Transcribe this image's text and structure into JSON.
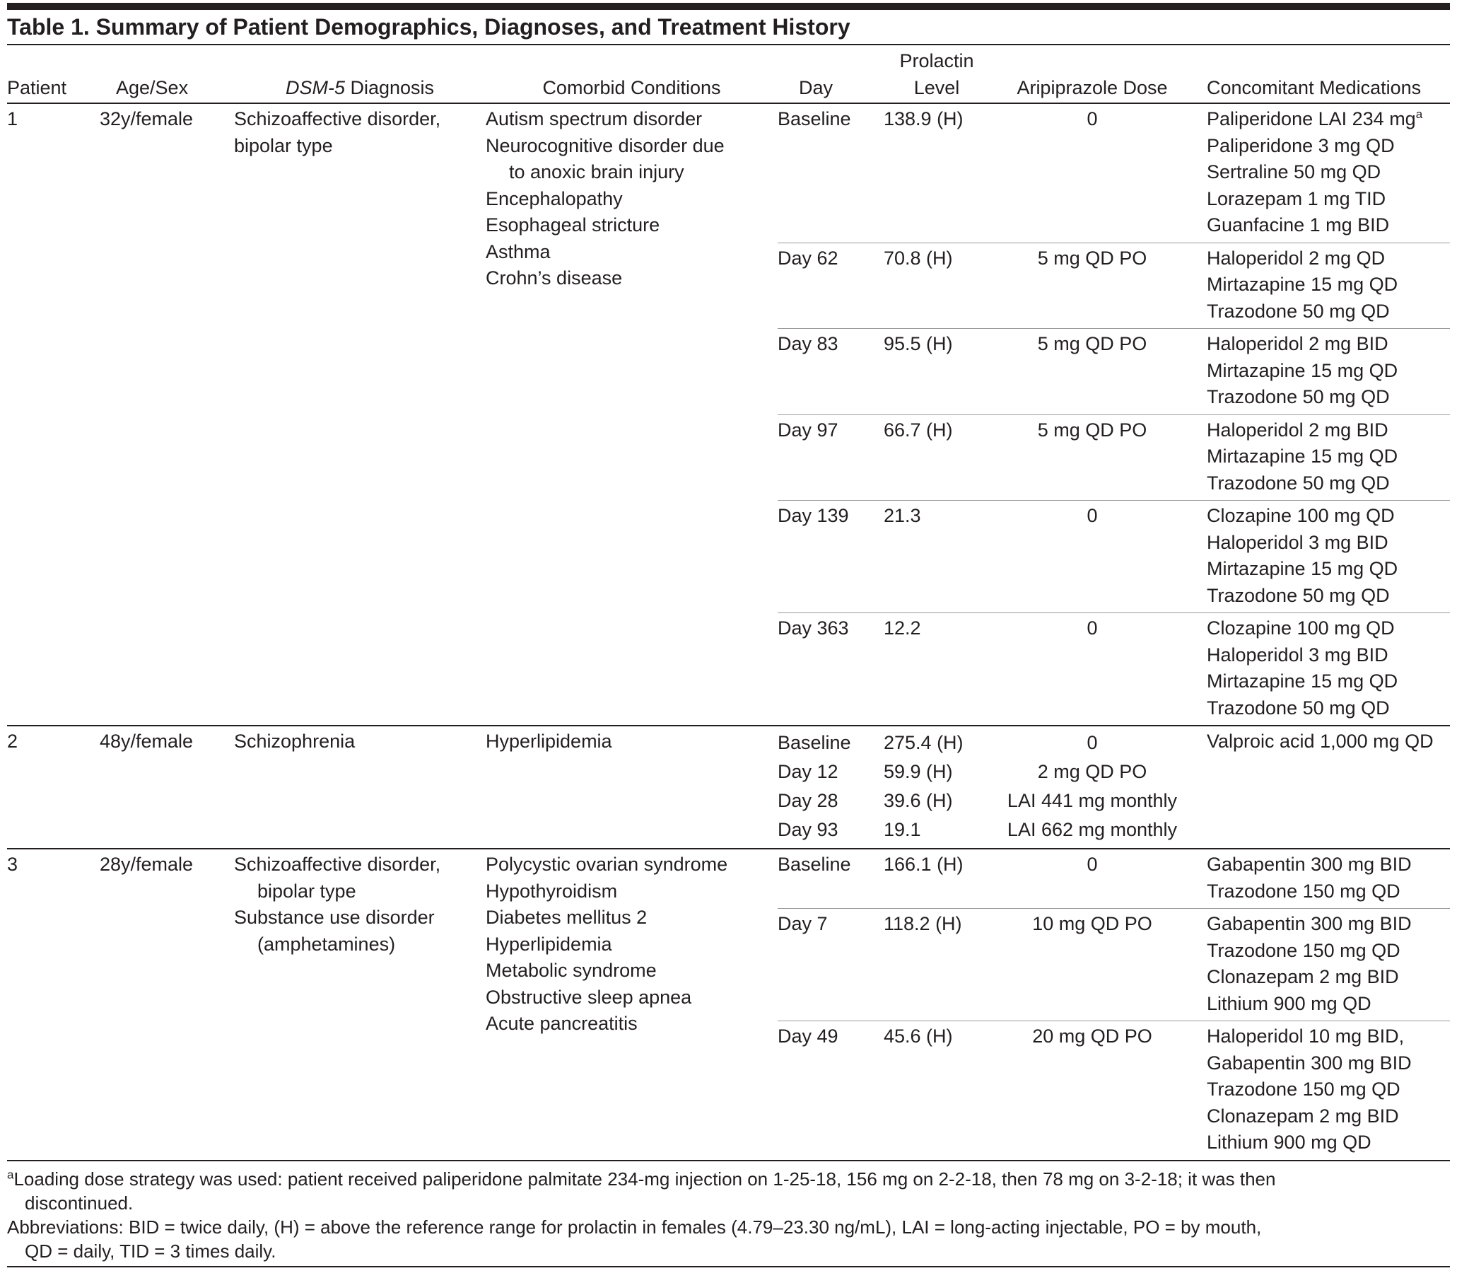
{
  "title": "Table 1. Summary of Patient Demographics, Diagnoses, and Treatment History",
  "columns": [
    "Patient",
    "Age/Sex",
    [
      "DSM-5",
      "Diagnosis"
    ],
    "Comorbid Conditions",
    "Day",
    [
      "Prolactin",
      "Level"
    ],
    "Aripiprazole Dose",
    "Concomitant Medications"
  ],
  "patients": [
    {
      "patient": "1",
      "age_sex": "32y/female",
      "diagnosis": [
        "Schizoaffective disorder,",
        "bipolar type"
      ],
      "comorbid": [
        "Autism spectrum disorder",
        [
          "Neurocognitive disorder due",
          "to anoxic brain injury"
        ],
        "Encephalopathy",
        "Esophageal stricture",
        "Asthma",
        "Crohn’s disease"
      ],
      "rows": [
        {
          "entries": [
            {
              "day": "Baseline",
              "prolactin": "138.9 (H)",
              "dose": "0"
            }
          ],
          "medications": [
            {
              "text": "Paliperidone LAI 234 mg",
              "sup": "a"
            },
            "Paliperidone 3 mg QD",
            "Sertraline 50 mg QD",
            "Lorazepam 1 mg TID",
            "Guanfacine 1 mg BID"
          ]
        },
        {
          "entries": [
            {
              "day": "Day 62",
              "prolactin": "70.8 (H)",
              "dose": "5 mg QD PO"
            }
          ],
          "medications": [
            "Haloperidol 2 mg QD",
            "Mirtazapine 15 mg QD",
            "Trazodone 50 mg QD"
          ]
        },
        {
          "entries": [
            {
              "day": "Day 83",
              "prolactin": "95.5 (H)",
              "dose": "5 mg QD PO"
            }
          ],
          "medications": [
            "Haloperidol 2 mg BID",
            "Mirtazapine 15 mg QD",
            "Trazodone 50 mg QD"
          ]
        },
        {
          "entries": [
            {
              "day": "Day 97",
              "prolactin": "66.7 (H)",
              "dose": "5 mg QD PO"
            }
          ],
          "medications": [
            "Haloperidol 2 mg BID",
            "Mirtazapine 15 mg QD",
            "Trazodone 50 mg QD"
          ]
        },
        {
          "entries": [
            {
              "day": "Day 139",
              "prolactin": "21.3",
              "dose": "0"
            }
          ],
          "medications": [
            "Clozapine 100 mg QD",
            "Haloperidol 3 mg BID",
            "Mirtazapine 15 mg QD",
            "Trazodone 50 mg QD"
          ]
        },
        {
          "entries": [
            {
              "day": "Day 363",
              "prolactin": "12.2",
              "dose": "0"
            }
          ],
          "medications": [
            "Clozapine 100 mg QD",
            "Haloperidol 3 mg BID",
            "Mirtazapine 15 mg QD",
            "Trazodone 50 mg QD"
          ]
        }
      ]
    },
    {
      "patient": "2",
      "age_sex": "48y/female",
      "diagnosis": [
        "Schizophrenia"
      ],
      "comorbid": [
        "Hyperlipidemia"
      ],
      "rows": [
        {
          "entries": [
            {
              "day": "Baseline",
              "prolactin": "275.4 (H)",
              "dose": "0"
            },
            {
              "day": "Day 12",
              "prolactin": "59.9 (H)",
              "dose": "2 mg QD PO"
            },
            {
              "day": "Day 28",
              "prolactin": "39.6 (H)",
              "dose": "LAI 441 mg monthly"
            },
            {
              "day": "Day 93",
              "prolactin": "19.1",
              "dose": "LAI 662 mg monthly"
            }
          ],
          "medications": [
            "Valproic acid 1,000 mg QD"
          ]
        }
      ]
    },
    {
      "patient": "3",
      "age_sex": "28y/female",
      "diagnosis": [
        [
          "Schizoaffective disorder,",
          "bipolar type"
        ],
        [
          "Substance use disorder",
          "(amphetamines)"
        ]
      ],
      "comorbid": [
        "Polycystic ovarian syndrome",
        "Hypothyroidism",
        "Diabetes mellitus 2",
        "Hyperlipidemia",
        "Metabolic syndrome",
        "Obstructive sleep apnea",
        "Acute pancreatitis"
      ],
      "rows": [
        {
          "entries": [
            {
              "day": "Baseline",
              "prolactin": "166.1 (H)",
              "dose": "0"
            }
          ],
          "medications": [
            "Gabapentin 300 mg BID",
            "Trazodone 150 mg QD"
          ]
        },
        {
          "entries": [
            {
              "day": "Day 7",
              "prolactin": "118.2 (H)",
              "dose": "10 mg QD PO"
            }
          ],
          "medications": [
            "Gabapentin 300 mg BID",
            "Trazodone 150 mg QD",
            "Clonazepam 2 mg BID",
            "Lithium 900 mg QD"
          ]
        },
        {
          "entries": [
            {
              "day": "Day 49",
              "prolactin": "45.6 (H)",
              "dose": "20 mg QD PO"
            }
          ],
          "medications": [
            "Haloperidol 10 mg BID,",
            "Gabapentin 300 mg BID",
            "Trazodone 150 mg QD",
            "Clonazepam 2 mg BID",
            "Lithium 900 mg QD"
          ]
        }
      ]
    }
  ],
  "footnote": {
    "marker": "a",
    "lines": [
      "Loading dose strategy was used: patient received paliperidone palmitate 234-mg injection on 1-25-18, 156 mg on 2-2-18, then 78 mg on 3-2-18; it was then",
      "discontinued."
    ]
  },
  "abbreviations": {
    "lines": [
      "Abbreviations: BID = twice daily, (H) = above the reference range for prolactin in females (4.79–23.30 ng/mL), LAI = long-acting injectable, PO = by mouth,",
      "QD = daily, TID = 3 times daily."
    ]
  }
}
